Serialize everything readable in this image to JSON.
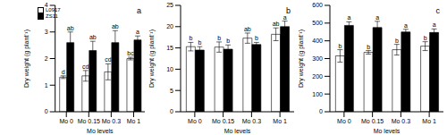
{
  "chart_data": [
    {
      "type": "bar",
      "title": "a",
      "x_label": "Mo levels",
      "y_label": "Dry weight (g plant⁻¹)",
      "categories": [
        "Mo 0",
        "Mo 0.15",
        "Mo 0.3",
        "Mo 1"
      ],
      "ylim": [
        0,
        4
      ],
      "yticks": [
        0,
        1,
        2,
        3,
        4
      ],
      "legend": "upper left",
      "series": [
        {
          "name": "L0917",
          "color": "#ffffff",
          "values": [
            1.3,
            1.35,
            1.5,
            2.0
          ],
          "errors": [
            0.05,
            0.2,
            0.3,
            0.05
          ],
          "annotations": [
            "d",
            "cd",
            "cd",
            "bc"
          ]
        },
        {
          "name": "ZS11",
          "color": "#000000",
          "values": [
            2.6,
            2.3,
            2.6,
            2.7
          ],
          "errors": [
            0.4,
            0.35,
            0.45,
            0.15
          ],
          "annotations": [
            "ab",
            "ab",
            "ab",
            "a"
          ]
        }
      ]
    },
    {
      "type": "bar",
      "title": "b",
      "x_label": "Mo levels",
      "y_label": "Dry weight (g plant⁻¹)",
      "categories": [
        "Mo 0",
        "Mo 0.15",
        "Mo 0.3",
        "Mo 1"
      ],
      "ylim": [
        0,
        25
      ],
      "yticks": [
        0,
        5,
        10,
        15,
        20,
        25
      ],
      "series": [
        {
          "color": "#ffffff",
          "values": [
            15.3,
            15.2,
            17.3,
            18.2
          ],
          "errors": [
            1.0,
            1.2,
            1.2,
            1.5
          ],
          "annotations": [
            "b",
            "b",
            "ab",
            "ab"
          ]
        },
        {
          "color": "#000000",
          "values": [
            14.5,
            14.7,
            15.8,
            20.0
          ],
          "errors": [
            0.8,
            1.0,
            0.5,
            1.3
          ],
          "annotations": [
            "b",
            "b",
            "b",
            "a"
          ]
        }
      ]
    },
    {
      "type": "bar",
      "title": "c",
      "x_label": "Mo levels",
      "y_label": "Dry weight (g plant⁻¹)",
      "categories": [
        "Mo 0",
        "Mo 0.15",
        "Mo 0.3",
        "Mo 1"
      ],
      "ylim": [
        0,
        600
      ],
      "yticks": [
        0,
        100,
        200,
        300,
        400,
        500,
        600
      ],
      "series": [
        {
          "color": "#ffffff",
          "values": [
            315,
            335,
            350,
            370
          ],
          "errors": [
            35,
            10,
            30,
            25
          ],
          "annotations": [
            "b",
            "b",
            "b",
            "b"
          ]
        },
        {
          "color": "#000000",
          "values": [
            487,
            475,
            450,
            447
          ],
          "errors": [
            20,
            35,
            15,
            20
          ],
          "annotations": [
            "a",
            "a",
            "a",
            "a"
          ]
        }
      ]
    }
  ]
}
